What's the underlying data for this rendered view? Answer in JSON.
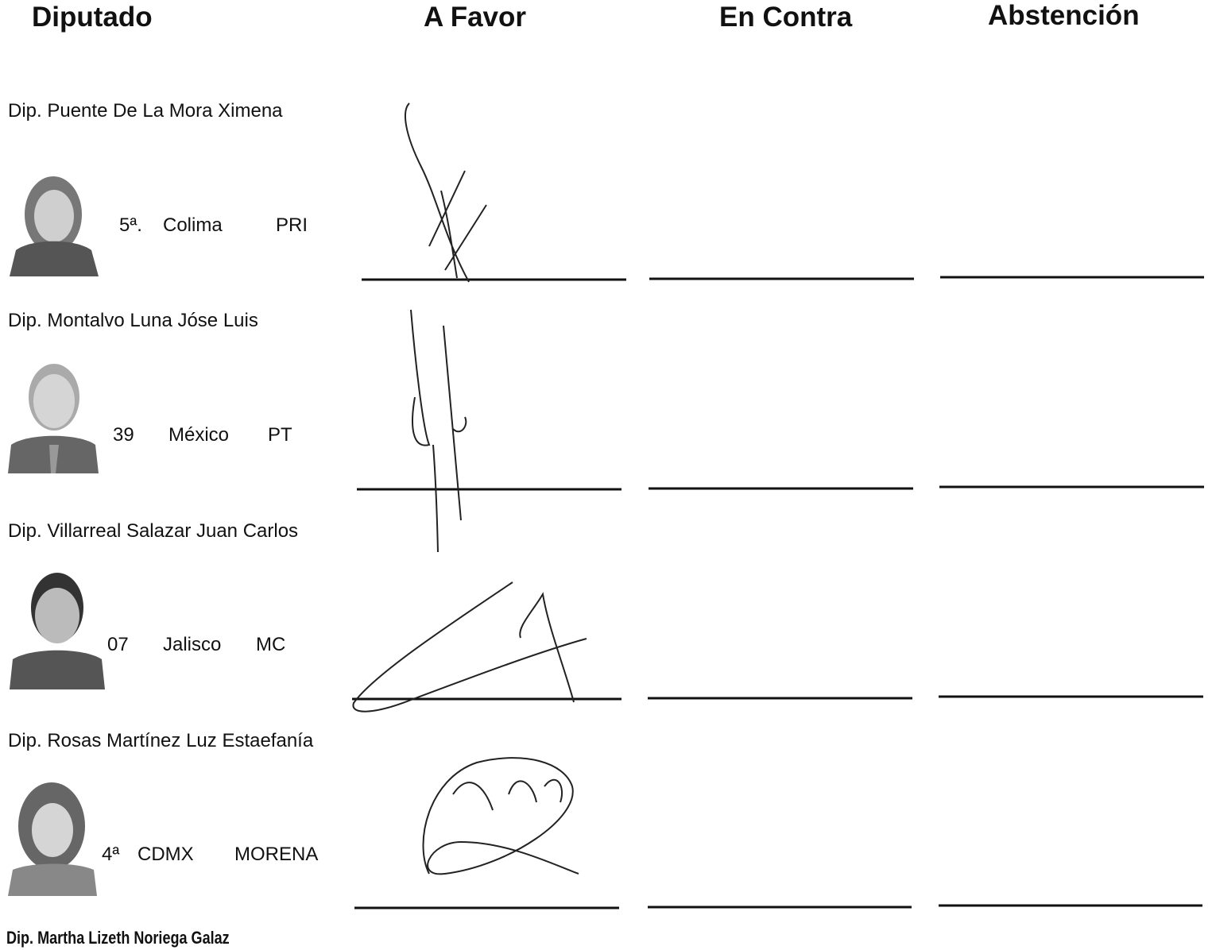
{
  "header": {
    "columns": [
      "Diputado",
      "A Favor",
      "En Contra",
      "Abstención"
    ]
  },
  "deputies": [
    {
      "name": "Dip. Puente De La Mora Ximena",
      "district": "5ª.",
      "state": "Colima",
      "party": "PRI"
    },
    {
      "name": "Dip. Montalvo Luna Jóse Luis",
      "district": "39",
      "state": "México",
      "party": "PT"
    },
    {
      "name": "Dip. Villarreal Salazar Juan Carlos",
      "district": "07",
      "state": "Jalisco",
      "party": "MC"
    },
    {
      "name": "Dip. Rosas Martínez Luz Estaefanía",
      "district": "4ª",
      "state": "CDMX",
      "party": "MORENA"
    },
    {
      "name": "Dip. Martha Lizeth Noriega Galaz"
    }
  ]
}
